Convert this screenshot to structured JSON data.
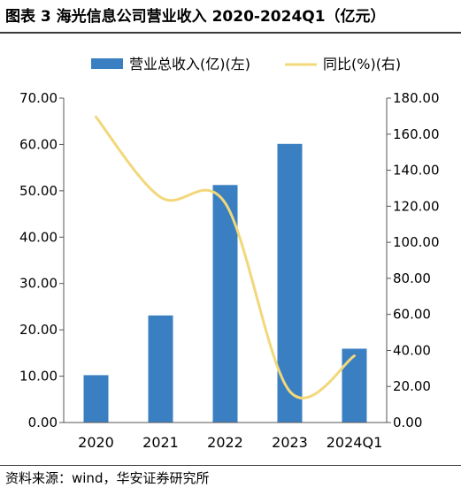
{
  "header": {
    "title": "图表 3 海光信息公司营业收入 2020-2024Q1（亿元）"
  },
  "footer": {
    "source": "资料来源：wind，华安证券研究所"
  },
  "chart_data": {
    "type": "bar",
    "categories": [
      "2020",
      "2021",
      "2022",
      "2023",
      "2024Q1"
    ],
    "series": [
      {
        "name": "营业总收入(亿)(左)",
        "type": "bar",
        "axis": "left",
        "color": "#3a7fc1",
        "values": [
          10.22,
          23.1,
          51.25,
          60.12,
          15.93
        ]
      },
      {
        "name": "同比(%)(右)",
        "type": "line",
        "axis": "right",
        "color": "#f2d87a",
        "values": [
          169.5,
          125.0,
          121.8,
          17.3,
          37.0
        ]
      }
    ],
    "y_left": {
      "range": [
        0,
        70
      ],
      "ticks": [
        "0.00",
        "10.00",
        "20.00",
        "30.00",
        "40.00",
        "50.00",
        "60.00",
        "70.00"
      ]
    },
    "y_right": {
      "range": [
        0,
        180
      ],
      "ticks": [
        "0.00",
        "20.00",
        "40.00",
        "60.00",
        "80.00",
        "100.00",
        "120.00",
        "140.00",
        "160.00",
        "180.00"
      ]
    },
    "legend": "top",
    "grid": false
  }
}
